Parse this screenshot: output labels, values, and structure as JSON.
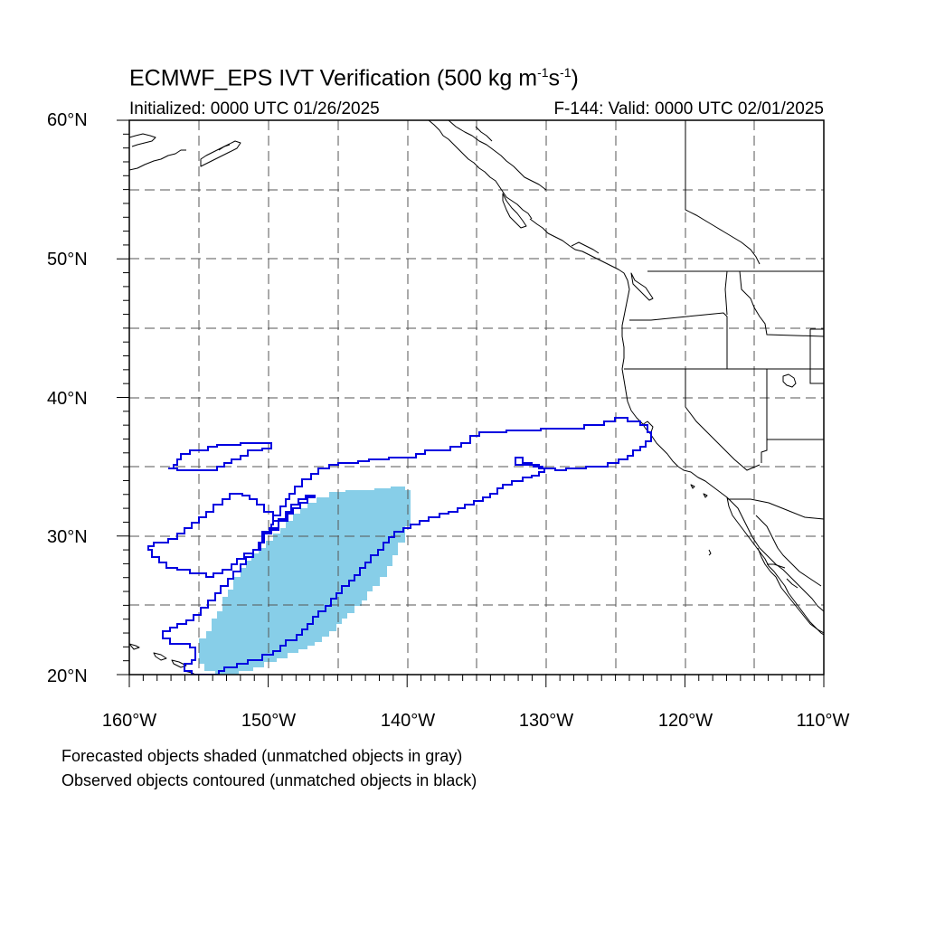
{
  "title": "ECMWF_EPS IVT Verification (500 kg m",
  "title_sup1": "-1",
  "title_mid": "s",
  "title_sup2": "-1",
  "title_end": ")",
  "initialized": "Initialized: 0000 UTC 01/26/2025",
  "valid": "F-144: Valid: 0000 UTC 02/01/2025",
  "lat_labels": [
    "60°N",
    "50°N",
    "40°N",
    "30°N",
    "20°N"
  ],
  "lon_labels": [
    "160°W",
    "150°W",
    "140°W",
    "130°W",
    "120°W",
    "110°W"
  ],
  "notes": {
    "line1": "Forecasted objects shaded (unmatched objects in gray)",
    "line2": "Observed objects contoured (unmatched objects in black)"
  },
  "colors": {
    "forecast_fill": "#87CEE8",
    "observed_contour": "#0000E0",
    "grid": "#555555",
    "coastline": "#000000"
  },
  "map_extent": {
    "lon_min": -160,
    "lon_max": -110,
    "lat_min": 20,
    "lat_max": 60
  }
}
